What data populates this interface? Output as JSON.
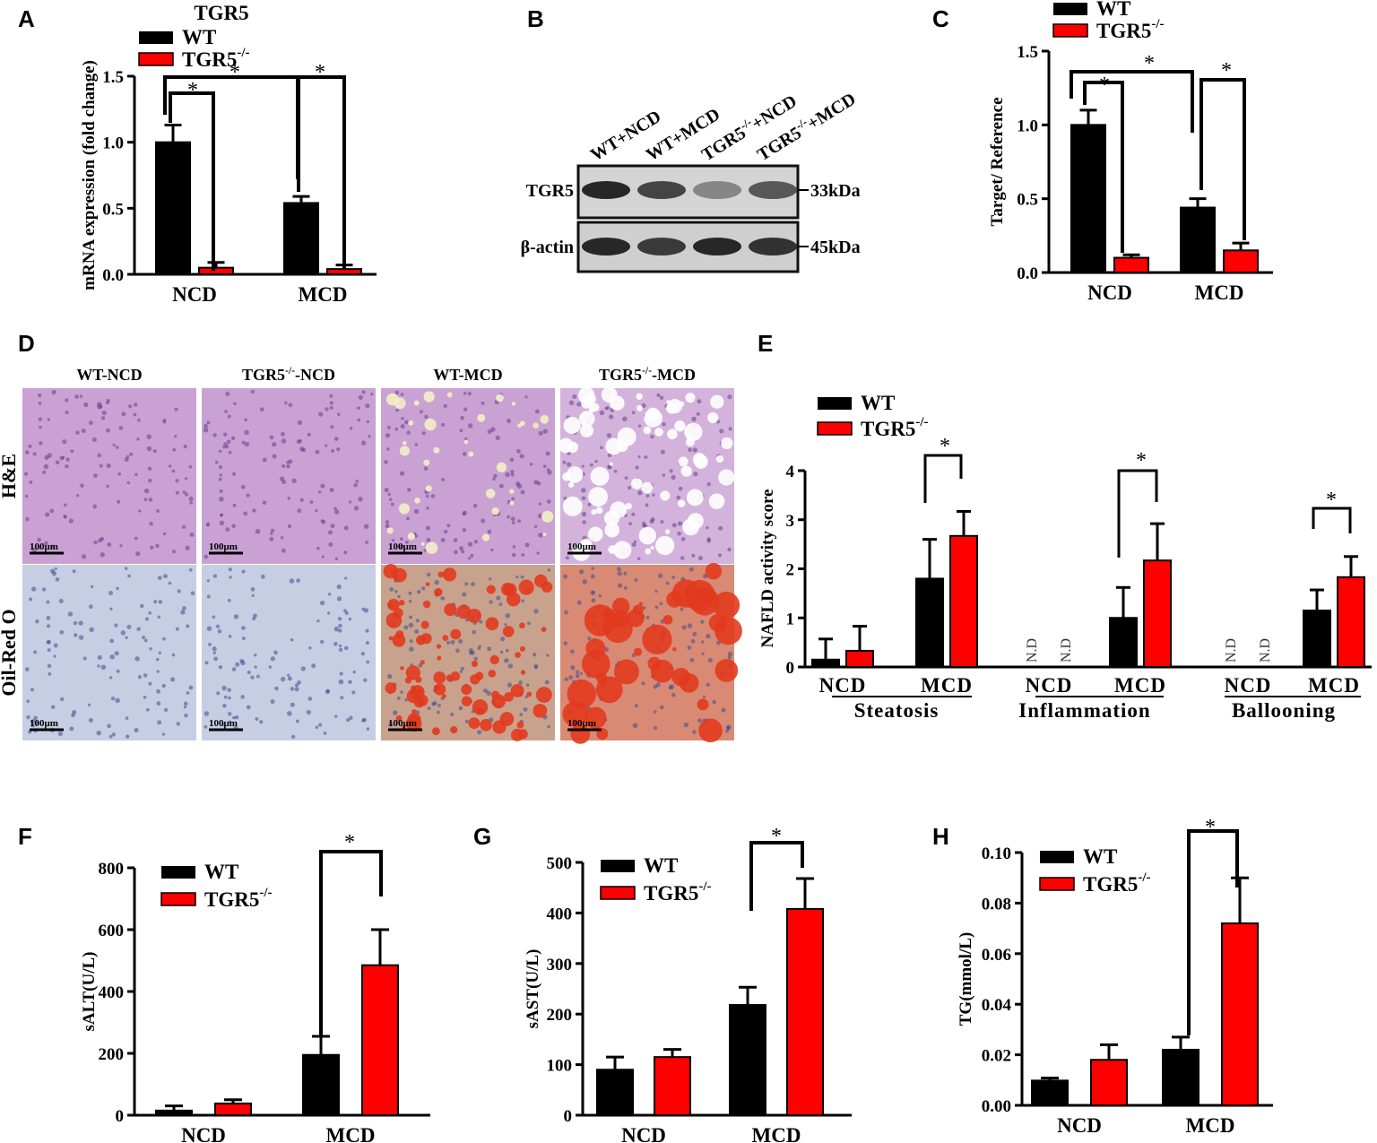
{
  "colors": {
    "wt": "#000000",
    "ko": "#ff0000",
    "he_bg": "#c9a1d3",
    "orc_bg": "#c7cee3",
    "orc_fat": "#e23a1e"
  },
  "panel_labels": [
    "A",
    "B",
    "C",
    "D",
    "E",
    "F",
    "G",
    "H"
  ],
  "chart_data": [
    {
      "panel": "A",
      "type": "bar",
      "title": "TGR5",
      "ylabel": "mRNA expression (fold change)",
      "xlabel": "",
      "categories": [
        "NCD",
        "MCD"
      ],
      "ylim": [
        0,
        1.5
      ],
      "yticks": [
        "0.0",
        "0.5",
        "1.0",
        "1.5"
      ],
      "ytick_values": [
        0,
        0.5,
        1.0,
        1.5
      ],
      "series": [
        {
          "name": "WT",
          "values": [
            1.0,
            0.54
          ],
          "errors": [
            0.13,
            0.05
          ]
        },
        {
          "name": "TGR5",
          "values": [
            0.05,
            0.04
          ],
          "errors": [
            0.04,
            0.03
          ]
        }
      ],
      "legend": "top-left",
      "significance": [
        {
          "group": "NCD",
          "label": "*"
        },
        {
          "group": "MCD",
          "label": "*"
        },
        {
          "between": "WT NCD vs WT MCD",
          "label": "*"
        }
      ]
    },
    {
      "panel": "C",
      "type": "bar",
      "title": "",
      "ylabel": "Target/ Reference",
      "xlabel": "",
      "categories": [
        "NCD",
        "MCD"
      ],
      "ylim": [
        0,
        1.5
      ],
      "yticks": [
        "0.0",
        "0.5",
        "1.0",
        "1.5"
      ],
      "ytick_values": [
        0,
        0.5,
        1.0,
        1.5
      ],
      "series": [
        {
          "name": "WT",
          "values": [
            1.0,
            0.44
          ],
          "errors": [
            0.1,
            0.06
          ]
        },
        {
          "name": "TGR5",
          "values": [
            0.1,
            0.15
          ],
          "errors": [
            0.02,
            0.05
          ]
        }
      ],
      "legend": "top-left",
      "significance": [
        {
          "group": "NCD",
          "label": "*"
        },
        {
          "group": "MCD",
          "label": "*"
        },
        {
          "between": "WT NCD vs WT MCD",
          "label": "*"
        }
      ]
    },
    {
      "panel": "E",
      "type": "bar",
      "title": "",
      "ylabel": "NAFLD activity score",
      "xlabel": "",
      "groups": [
        "Steatosis",
        "Inflammation",
        "Ballooning"
      ],
      "categories": [
        "NCD",
        "MCD",
        "NCD",
        "MCD",
        "NCD",
        "MCD"
      ],
      "ylim": [
        0,
        4
      ],
      "yticks": [
        "0",
        "1",
        "2",
        "3",
        "4"
      ],
      "ytick_values": [
        0,
        1,
        2,
        3,
        4
      ],
      "series": [
        {
          "name": "WT",
          "values": [
            0.15,
            1.8,
            null,
            1.0,
            null,
            1.15
          ],
          "errors": [
            0.42,
            0.8,
            null,
            0.62,
            null,
            0.42
          ]
        },
        {
          "name": "TGR5",
          "values": [
            0.33,
            2.67,
            null,
            2.17,
            null,
            1.83
          ],
          "errors": [
            0.5,
            0.5,
            null,
            0.75,
            null,
            0.42
          ]
        }
      ],
      "not_determined_label": "N.D",
      "legend": "top-left",
      "significance": [
        {
          "group": "Steatosis MCD",
          "label": "*"
        },
        {
          "group": "Inflammation MCD",
          "label": "*"
        },
        {
          "group": "Ballooning MCD",
          "label": "*"
        }
      ]
    },
    {
      "panel": "F",
      "type": "bar",
      "title": "",
      "ylabel": "sALT(U/L)",
      "xlabel": "",
      "categories": [
        "NCD",
        "MCD"
      ],
      "ylim": [
        0,
        800
      ],
      "yticks": [
        "0",
        "200",
        "400",
        "600",
        "800"
      ],
      "ytick_values": [
        0,
        200,
        400,
        600,
        800
      ],
      "series": [
        {
          "name": "WT",
          "values": [
            15,
            195
          ],
          "errors": [
            15,
            60
          ]
        },
        {
          "name": "TGR5",
          "values": [
            38,
            485
          ],
          "errors": [
            12,
            115
          ]
        }
      ],
      "legend": "top-left",
      "significance": [
        {
          "group": "MCD",
          "label": "*"
        }
      ]
    },
    {
      "panel": "G",
      "type": "bar",
      "title": "",
      "ylabel": "sAST(U/L)",
      "xlabel": "",
      "categories": [
        "NCD",
        "MCD"
      ],
      "ylim": [
        0,
        500
      ],
      "yticks": [
        "0",
        "100",
        "200",
        "300",
        "400",
        "500"
      ],
      "ytick_values": [
        0,
        100,
        200,
        300,
        400,
        500
      ],
      "series": [
        {
          "name": "WT",
          "values": [
            90,
            218
          ],
          "errors": [
            25,
            35
          ]
        },
        {
          "name": "TGR5",
          "values": [
            115,
            408
          ],
          "errors": [
            15,
            60
          ]
        }
      ],
      "legend": "top-left",
      "significance": [
        {
          "group": "MCD",
          "label": "*"
        }
      ]
    },
    {
      "panel": "H",
      "type": "bar",
      "title": "",
      "ylabel": "TG(mmol/L)",
      "xlabel": "",
      "categories": [
        "NCD",
        "MCD"
      ],
      "ylim": [
        0,
        0.1
      ],
      "yticks": [
        "0.00",
        "0.02",
        "0.04",
        "0.06",
        "0.08",
        "0.10"
      ],
      "ytick_values": [
        0,
        0.02,
        0.04,
        0.06,
        0.08,
        0.1
      ],
      "series": [
        {
          "name": "WT",
          "values": [
            0.0098,
            0.022
          ],
          "errors": [
            0.001,
            0.005
          ]
        },
        {
          "name": "TGR5",
          "values": [
            0.018,
            0.072
          ],
          "errors": [
            0.006,
            0.018
          ]
        }
      ],
      "legend": "top-left",
      "significance": [
        {
          "group": "MCD",
          "label": "*"
        }
      ]
    }
  ],
  "legend_labels": {
    "wt": "WT",
    "ko_base": "TGR5",
    "ko_sup": "-/-"
  },
  "western_blot": {
    "lanes": [
      {
        "base": "WT+NCD",
        "sup": ""
      },
      {
        "base": "WT+MCD",
        "sup": ""
      },
      {
        "base": "TGR5",
        "sup": "-/-",
        "rest": "+NCD"
      },
      {
        "base": "TGR5",
        "sup": "-/-",
        "rest": "+MCD"
      }
    ],
    "rows": [
      {
        "label": "TGR5",
        "size": "33kDa",
        "intensity": [
          0.95,
          0.8,
          0.45,
          0.7
        ]
      },
      {
        "label": "β-actin",
        "size": "45kDa",
        "intensity": [
          0.95,
          0.85,
          0.95,
          0.9
        ]
      }
    ]
  },
  "histology": {
    "columns": [
      {
        "base": "WT-NCD",
        "sup": "",
        "rest": ""
      },
      {
        "base": "TGR5",
        "sup": "-/-",
        "rest": "-NCD"
      },
      {
        "base": "WT-MCD",
        "sup": "",
        "rest": ""
      },
      {
        "base": "TGR5",
        "sup": "-/-",
        "rest": "-MCD"
      }
    ],
    "rows": [
      "H&E",
      "Oil-Red O"
    ],
    "scale_bar": "100μm"
  }
}
